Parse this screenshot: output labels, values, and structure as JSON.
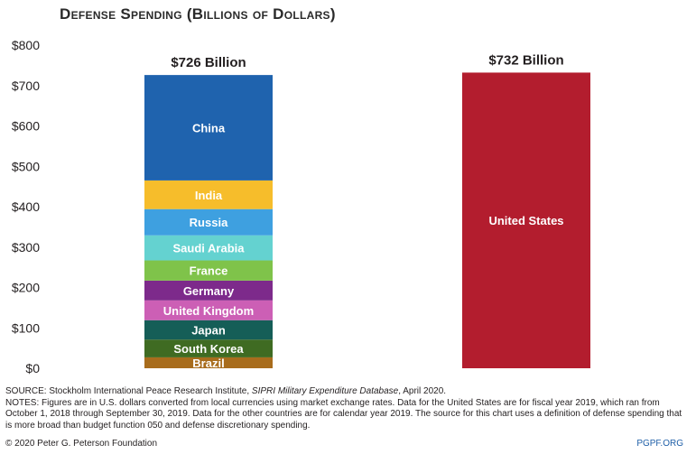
{
  "chart_data": {
    "type": "bar",
    "title": "Defense Spending (Billions of Dollars)",
    "yaxis": {
      "min": 0,
      "max": 800,
      "ticks": [
        0,
        100,
        200,
        300,
        400,
        500,
        600,
        700,
        800
      ],
      "tick_labels": [
        "$0",
        "$100",
        "$200",
        "$300",
        "$400",
        "$500",
        "$600",
        "$700",
        "$800"
      ]
    },
    "grid": false,
    "legend": "none",
    "bars": [
      {
        "stacked": true,
        "total_label": "$726 Billion",
        "total": 726,
        "segments": [
          {
            "label": "Brazil",
            "value": 27,
            "color": "#a86c1c"
          },
          {
            "label": "South Korea",
            "value": 44,
            "color": "#3f6b22"
          },
          {
            "label": "Japan",
            "value": 48,
            "color": "#155e57"
          },
          {
            "label": "United Kingdom",
            "value": 49,
            "color": "#cc5fb5"
          },
          {
            "label": "Germany",
            "value": 49,
            "color": "#7d2a8b"
          },
          {
            "label": "France",
            "value": 50,
            "color": "#7fc34a"
          },
          {
            "label": "Saudi Arabia",
            "value": 62,
            "color": "#64d2d0"
          },
          {
            "label": "Russia",
            "value": 65,
            "color": "#3ea0e0"
          },
          {
            "label": "India",
            "value": 71,
            "color": "#f6bd2b"
          },
          {
            "label": "China",
            "value": 261,
            "color": "#1f63ae"
          }
        ]
      },
      {
        "stacked": false,
        "total_label": "$732 Billion",
        "total": 732,
        "segments": [
          {
            "label": "United States",
            "value": 732,
            "color": "#b31d2e"
          }
        ]
      }
    ]
  },
  "footer": {
    "source_prefix": "SOURCE: Stockholm International Peace Research Institute,",
    "source_italic": "SIPRI Military Expenditure Database",
    "source_suffix": ", April 2020.",
    "notes": "NOTES: Figures are in U.S. dollars converted from local currencies using market exchange rates. Data for the United States are for fiscal year 2019, which ran from October 1, 2018 through September 30, 2019. Data for the other countries are for calendar year 2019. The source for this chart uses a definition of defense spending that is more broad than budget function 050 and defense discretionary spending.",
    "copyright": "© 2020 Peter G. Peterson Foundation",
    "site": "PGPF.ORG"
  }
}
